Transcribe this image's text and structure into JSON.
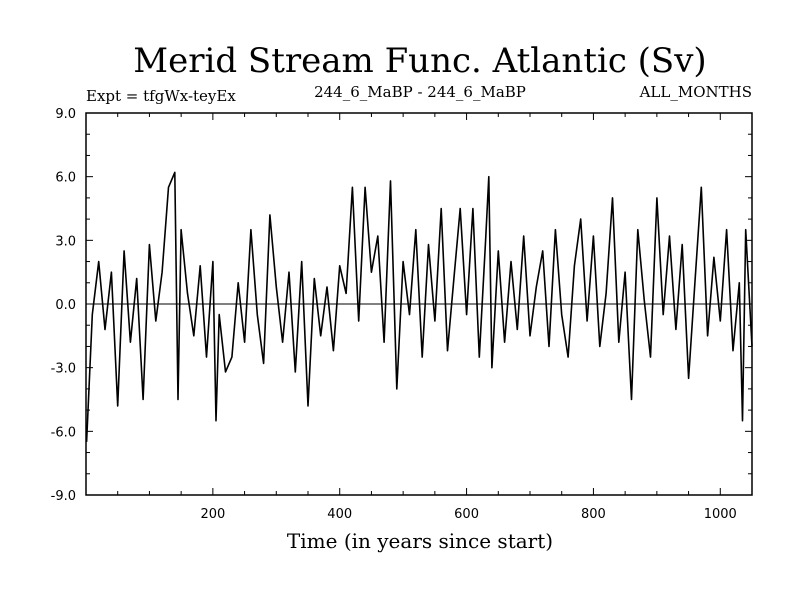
{
  "chart_data": {
    "type": "line",
    "title": "Merid Stream Func. Atlantic (Sv)",
    "subtitle_left": "Expt = tfgWx-teyEx",
    "subtitle_center": "244_6_MaBP - 244_6_MaBP",
    "subtitle_right": "ALL_MONTHS",
    "xlabel": "Time (in years since start)",
    "ylabel": "",
    "xlim": [
      0,
      1050
    ],
    "ylim": [
      -9,
      9
    ],
    "x_ticks": [
      200,
      400,
      600,
      800,
      1000
    ],
    "x_tick_labels": [
      "200",
      "400",
      "600",
      "800",
      "1000"
    ],
    "y_ticks": [
      -9,
      -6,
      -3,
      0,
      3,
      6,
      9
    ],
    "y_tick_labels": [
      "-9.0",
      "-6.0",
      "-3.0",
      "0.0",
      "3.0",
      "6.0",
      "9.0"
    ],
    "zero_line": true,
    "series": [
      {
        "name": "Merid Stream Func.",
        "color": "#000000",
        "x": [
          1,
          10,
          20,
          30,
          40,
          50,
          60,
          70,
          80,
          90,
          100,
          110,
          120,
          130,
          140,
          145,
          150,
          160,
          170,
          180,
          190,
          200,
          205,
          210,
          220,
          230,
          240,
          250,
          260,
          270,
          280,
          290,
          300,
          310,
          320,
          330,
          340,
          350,
          360,
          370,
          380,
          390,
          400,
          410,
          420,
          430,
          440,
          450,
          460,
          470,
          480,
          490,
          500,
          510,
          520,
          530,
          540,
          550,
          560,
          570,
          580,
          590,
          600,
          610,
          620,
          630,
          635,
          640,
          650,
          660,
          670,
          680,
          690,
          700,
          710,
          720,
          730,
          740,
          750,
          760,
          770,
          780,
          790,
          800,
          810,
          820,
          830,
          840,
          850,
          860,
          870,
          880,
          890,
          900,
          910,
          920,
          930,
          940,
          950,
          960,
          970,
          980,
          990,
          1000,
          1010,
          1020,
          1030,
          1035,
          1040,
          1050
        ],
        "values": [
          -6.5,
          -0.5,
          2.0,
          -1.2,
          1.5,
          -4.8,
          2.5,
          -1.8,
          1.2,
          -4.5,
          2.8,
          -0.8,
          1.5,
          5.5,
          6.2,
          -4.5,
          3.5,
          0.5,
          -1.5,
          1.8,
          -2.5,
          2.0,
          -5.5,
          -0.5,
          -3.2,
          -2.5,
          1.0,
          -1.8,
          3.5,
          -0.5,
          -2.8,
          4.2,
          0.8,
          -1.8,
          1.5,
          -3.2,
          2.0,
          -4.8,
          1.2,
          -1.5,
          0.8,
          -2.2,
          1.8,
          0.5,
          5.5,
          -0.8,
          5.5,
          1.5,
          3.2,
          -1.8,
          5.8,
          -4.0,
          2.0,
          -0.5,
          3.5,
          -2.5,
          2.8,
          -0.8,
          4.5,
          -2.2,
          1.2,
          4.5,
          -0.5,
          4.5,
          -2.5,
          3.0,
          6.0,
          -3.0,
          2.5,
          -1.8,
          2.0,
          -1.2,
          3.2,
          -1.5,
          0.8,
          2.5,
          -2.0,
          3.5,
          -0.5,
          -2.5,
          1.8,
          4.0,
          -0.8,
          3.2,
          -2.0,
          0.5,
          5.0,
          -1.8,
          1.5,
          -4.5,
          3.5,
          0.2,
          -2.5,
          5.0,
          -0.5,
          3.2,
          -1.2,
          2.8,
          -3.5,
          1.0,
          5.5,
          -1.5,
          2.2,
          -0.8,
          3.5,
          -2.2,
          1.0,
          -5.5,
          3.5,
          -2.0
        ]
      }
    ]
  }
}
